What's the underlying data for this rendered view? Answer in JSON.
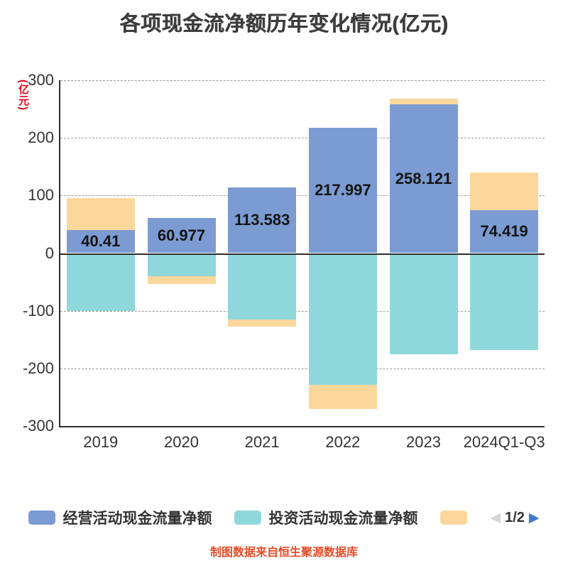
{
  "title": "各项现金流净额历年变化情况(亿元)",
  "y_axis_unit": "(亿元)",
  "footer": "制图数据来自恒生聚源数据库",
  "colors": {
    "y_unit": "#e60012",
    "footer": "#e34d26",
    "axis": "#2f2f2f",
    "grid": "#9b9b9b",
    "tick_text": "#333333"
  },
  "legend": {
    "items": [
      {
        "label": "经营活动现金流量净额",
        "color": "#7b9bd2"
      },
      {
        "label": "投资活动现金流量净额",
        "color": "#8ed8dc"
      },
      {
        "label": "",
        "color": "#fbd79b"
      }
    ],
    "pager": {
      "prev_icon": "◀",
      "text": "1/2",
      "next_icon": "▶"
    }
  },
  "chart_data": {
    "type": "bar",
    "stacked": true,
    "title": "各项现金流净额历年变化情况(亿元)",
    "categories": [
      "2019",
      "2020",
      "2021",
      "2022",
      "2023",
      "2024Q1-Q3"
    ],
    "series": [
      {
        "name": "经营活动现金流量净额",
        "color": "#7b9bd2",
        "values": [
          40.41,
          60.977,
          113.583,
          217.997,
          258.121,
          74.419
        ],
        "labels": [
          "40.41",
          "60.977",
          "113.583",
          "217.997",
          "258.121",
          "74.419"
        ]
      },
      {
        "name": "投资活动现金流量净额",
        "color": "#8ed8dc",
        "values": [
          -100,
          -40,
          -115,
          -228,
          -175,
          -168
        ]
      },
      {
        "name": "",
        "color": "#fbd79b",
        "values": [
          55,
          -13,
          -12,
          -42,
          10,
          65
        ]
      }
    ],
    "ylabel": "(亿元)",
    "ylim": [
      -300,
      300
    ],
    "yticks": [
      300,
      200,
      100,
      0,
      -100,
      -200,
      -300
    ],
    "grid": "dashed-horizontal",
    "legend_position": "bottom"
  }
}
